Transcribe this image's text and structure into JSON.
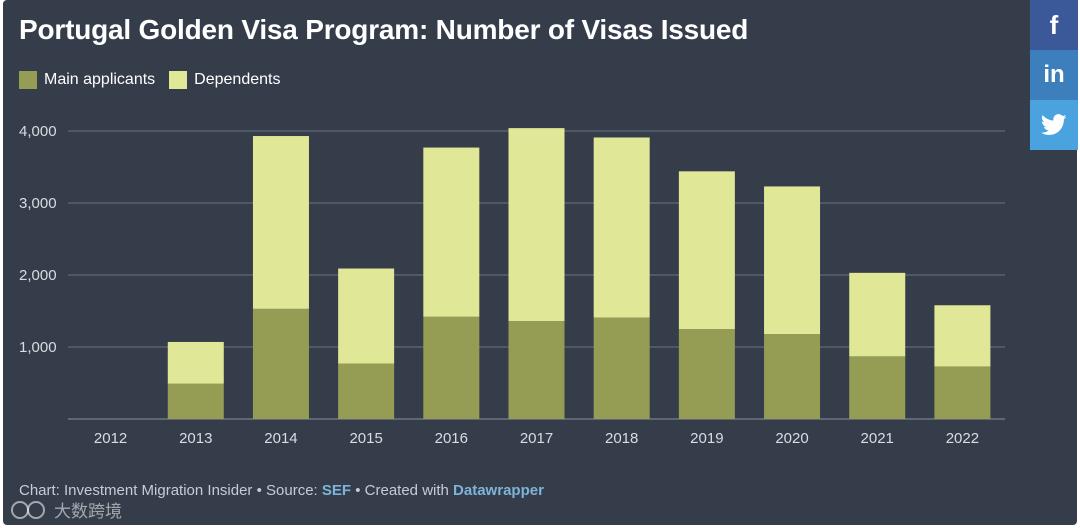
{
  "chart_data": {
    "type": "bar",
    "stacked": true,
    "title": "Portugal Golden Visa Program: Number of Visas Issued",
    "categories": [
      "2012",
      "2013",
      "2014",
      "2015",
      "2016",
      "2017",
      "2018",
      "2019",
      "2020",
      "2021",
      "2022"
    ],
    "series": [
      {
        "name": "Main applicants",
        "color": "#959d55",
        "values": [
          0,
          490,
          1530,
          770,
          1420,
          1360,
          1410,
          1250,
          1180,
          870,
          730
        ]
      },
      {
        "name": "Dependents",
        "color": "#e0e796",
        "values": [
          0,
          580,
          2400,
          1320,
          2350,
          2680,
          2500,
          2190,
          2050,
          1160,
          850
        ]
      }
    ],
    "ylim": [
      0,
      4000
    ],
    "yticks": [
      1000,
      2000,
      3000,
      4000
    ],
    "ytick_labels": [
      "1,000",
      "2,000",
      "3,000",
      "4,000"
    ],
    "grid": true,
    "legend_position": "top-left",
    "xlabel": "",
    "ylabel": ""
  },
  "footer": {
    "prefix": "Chart: Investment Migration Insider • Source: ",
    "source_link": "SEF",
    "middle": " • Created with ",
    "tool_link": "Datawrapper"
  },
  "share": {
    "facebook": "f",
    "linkedin": "in",
    "twitter_icon": "twitter-bird"
  },
  "watermark": {
    "text": "大数跨境"
  },
  "colors": {
    "background": "#353d4b",
    "grid": "#6b7280",
    "tick_text": "#d9dde3"
  }
}
